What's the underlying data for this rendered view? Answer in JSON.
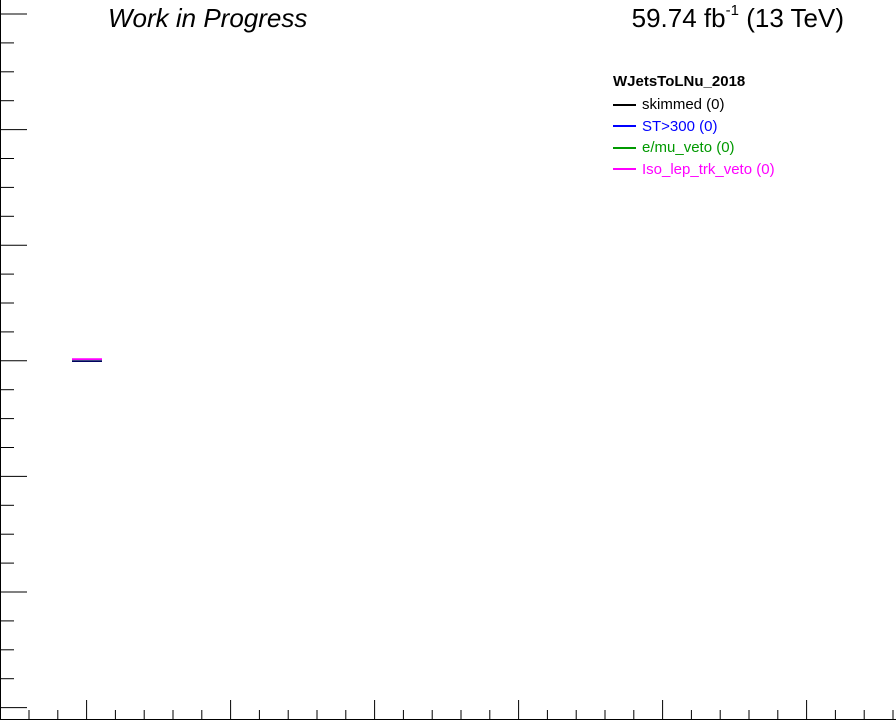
{
  "header": {
    "left_label": "Work in Progress",
    "lumi_value": "59.74 fb",
    "lumi_exponent": "-1",
    "energy_label": "(13 TeV)"
  },
  "chart_data": {
    "type": "line",
    "title": "",
    "xlabel": "",
    "ylabel": "",
    "legend_title": "WJetsToLNu_2018",
    "legend_position": "top-right",
    "grid": false,
    "series": [
      {
        "name": "skimmed (0)",
        "color": "#000000",
        "x": [
          0,
          1
        ],
        "y": [
          0,
          0
        ]
      },
      {
        "name": "ST>300 (0)",
        "color": "#0000ff",
        "x": [
          0,
          1
        ],
        "y": [
          0,
          0
        ]
      },
      {
        "name": "e/mu_veto (0)",
        "color": "#009900",
        "x": [
          0,
          1
        ],
        "y": [
          0,
          0
        ]
      },
      {
        "name": "Iso_lep_trk_veto (0)",
        "color": "#ff00ff",
        "x": [
          0,
          1
        ],
        "y": [
          0,
          0
        ]
      }
    ]
  }
}
